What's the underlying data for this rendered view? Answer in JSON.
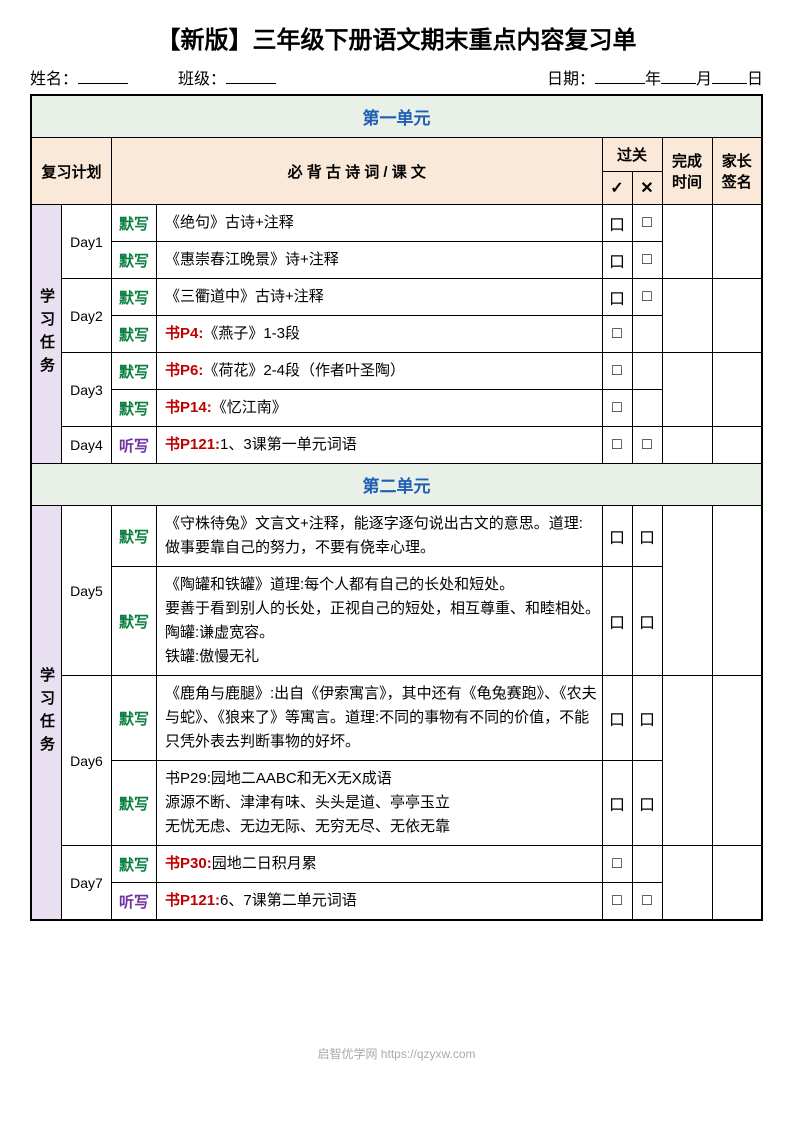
{
  "title": "【新版】三年级下册语文期末重点内容复习单",
  "info": {
    "name_label": "姓名：",
    "class_label": "班级：",
    "date_label": "日期：",
    "year": "年",
    "month": "月",
    "day": "日"
  },
  "headers": {
    "plan": "复习计划",
    "content": "必 背 古 诗 词 / 课 文",
    "pass": "过关",
    "check": "✓",
    "cross": "✕",
    "time": "完成时间",
    "sign": "家长签名"
  },
  "unit1": {
    "title": "第一单元",
    "task_label": "学习任务",
    "rows": [
      {
        "day": "Day1",
        "action": "默写",
        "content": "《绝句》古诗+注释",
        "check1": "口",
        "check2": "□"
      },
      {
        "day": "",
        "action": "默写",
        "content": "《惠崇春江晚景》诗+注释",
        "check1": "口",
        "check2": "□"
      },
      {
        "day": "Day2",
        "action": "默写",
        "content": "《三衢道中》古诗+注释",
        "check1": "口",
        "check2": "□"
      },
      {
        "day": "",
        "action": "默写",
        "book": "书P4:",
        "content": "《燕子》1-3段",
        "check1": "□",
        "check2": ""
      },
      {
        "day": "Day3",
        "action": "默写",
        "book": "书P6:",
        "content": "《荷花》2-4段（作者叶圣陶）",
        "check1": "□",
        "check2": ""
      },
      {
        "day": "",
        "action": "默写",
        "book": "书P14:",
        "content": "《忆江南》",
        "check1": "□",
        "check2": ""
      },
      {
        "day": "Day4",
        "action": "听写",
        "action_class": "purple",
        "book": "书P121:",
        "content": "1、3课第一单元词语",
        "check1": "□",
        "check2": "□"
      }
    ]
  },
  "unit2": {
    "title": "第二单元",
    "task_label": "学习任务",
    "rows": [
      {
        "day": "Day5",
        "action": "默写",
        "content": "《守株待兔》文言文+注释，能逐字逐句说出古文的意思。道理:做事要靠自己的努力，不要有侥幸心理。",
        "check1": "口",
        "check2": "口"
      },
      {
        "day": "",
        "action": "默写",
        "content": "《陶罐和铁罐》道理:每个人都有自己的长处和短处。\n要善于看到别人的长处，正视自己的短处，相互尊重、和睦相处。　陶罐:谦虚宽容。\n铁罐:傲慢无礼",
        "check1": "口",
        "check2": "口"
      },
      {
        "day": "Day6",
        "action": "默写",
        "content": "《鹿角与鹿腿》:出自《伊索寓言》，其中还有《龟兔赛跑》、《农夫与蛇》、《狼来了》等寓言。道理:不同的事物有不同的价值，不能只凭外表去判断事物的好坏。",
        "check1": "口",
        "check2": "口"
      },
      {
        "day": "",
        "action": "默写",
        "content": "书P29:园地二AABC和无X无X成语\n源源不断、津津有味、头头是道、亭亭玉立\n无忧无虑、无边无际、无穷无尽、无依无靠",
        "check1": "口",
        "check2": "口"
      },
      {
        "day": "Day7",
        "action": "默写",
        "book": "书P30:",
        "content": "园地二日积月累",
        "check1": "□",
        "check2": ""
      },
      {
        "day": "",
        "action": "听写",
        "action_class": "purple",
        "book": "书P121:",
        "content": "6、7课第二单元词语",
        "check1": "□",
        "check2": "□"
      }
    ]
  },
  "watermark": "启智优学网 https://qzyxw.com"
}
